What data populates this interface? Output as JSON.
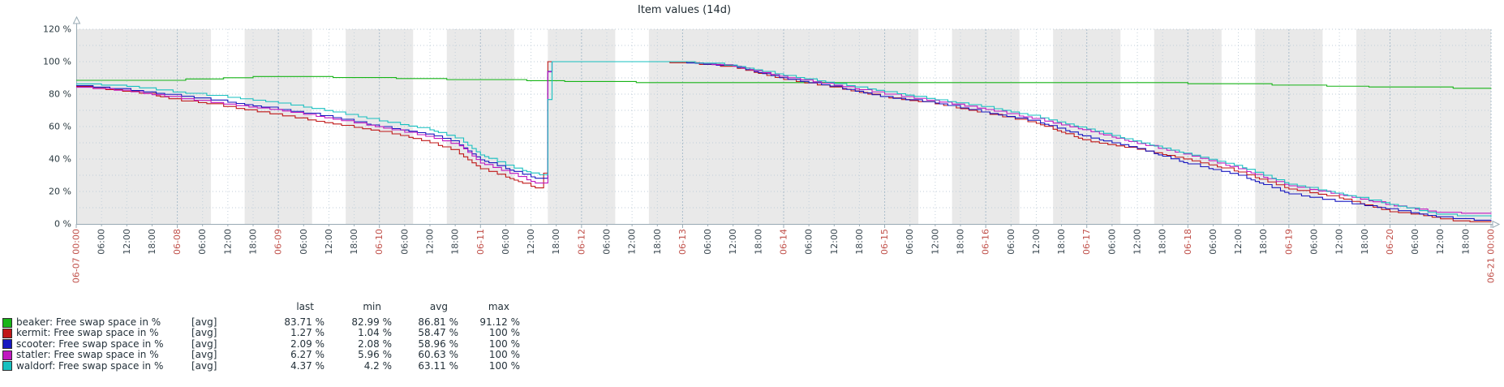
{
  "chart_data": {
    "type": "line",
    "title": "Item values (14d)",
    "y_axis": {
      "unit": "%",
      "min": 0,
      "max": 120,
      "label_step": 20,
      "grid_step": 10,
      "tick_labels": [
        "0 %",
        "20 %",
        "40 %",
        "60 %",
        "80 %",
        "100 %",
        "120 %"
      ]
    },
    "x_axis": {
      "total_days": 14,
      "tick_hours": 6,
      "hour_labels": [
        "06:00",
        "12:00",
        "18:00"
      ],
      "day_labels": [
        "06-07 00:00",
        "06-08",
        "06-09",
        "06-10",
        "06-11",
        "06-12",
        "06-13",
        "06-14",
        "06-15",
        "06-16",
        "06-17",
        "06-18",
        "06-19",
        "06-20",
        "06-21 00:00"
      ]
    },
    "background": {
      "band_color": "#e9e9e9",
      "working_day_offsets": [
        1,
        2,
        3,
        4,
        5,
        8,
        9,
        10,
        11,
        12
      ],
      "working_window_hours": [
        8,
        16
      ]
    },
    "grid": {
      "h_color": "#bfcdd9",
      "v_color": "#c3d0da",
      "v_day_color": "#aabdcb",
      "axis_color": "#98aab4",
      "hour_label_color": "#3a4750",
      "day_label_color": "#c0504a",
      "y_label_color": "#2a3940"
    },
    "series": [
      {
        "name": "beaker: Free swap space in %",
        "color": "#17b417",
        "points": [
          [
            0,
            88.5
          ],
          [
            0.3,
            88.2
          ],
          [
            0.7,
            88.8
          ],
          [
            1,
            89.2
          ],
          [
            1.5,
            90.2
          ],
          [
            1.8,
            91.0
          ],
          [
            2.2,
            90.5
          ],
          [
            3,
            89.8
          ],
          [
            3.6,
            89.0
          ],
          [
            4,
            88.6
          ],
          [
            4.6,
            88.2
          ],
          [
            5,
            87.5
          ],
          [
            5.5,
            87.1
          ],
          [
            6,
            86.9
          ],
          [
            6.5,
            87.2
          ],
          [
            7,
            87.0
          ],
          [
            7.5,
            87.1
          ],
          [
            8,
            87.2
          ],
          [
            8.5,
            87.0
          ],
          [
            9,
            87.1
          ],
          [
            9.5,
            87.0
          ],
          [
            10,
            87.2
          ],
          [
            10.5,
            86.9
          ],
          [
            11,
            86.4
          ],
          [
            11.5,
            85.9
          ],
          [
            12,
            85.4
          ],
          [
            12.5,
            84.7
          ],
          [
            13,
            84.2
          ],
          [
            13.5,
            83.9
          ],
          [
            13.8,
            83.2
          ],
          [
            14,
            83.71
          ]
        ]
      },
      {
        "name": "kermit: Free swap space in %",
        "color": "#c01717",
        "points": [
          [
            0,
            84.8
          ],
          [
            0.25,
            83.0
          ],
          [
            0.5,
            81.5
          ],
          [
            0.75,
            79.5
          ],
          [
            1,
            76.0
          ],
          [
            1.25,
            74.5
          ],
          [
            1.5,
            72.0
          ],
          [
            1.75,
            69.5
          ],
          [
            2,
            67.0
          ],
          [
            2.5,
            62.0
          ],
          [
            3,
            57.0
          ],
          [
            3.25,
            54.0
          ],
          [
            3.5,
            50.0
          ],
          [
            3.75,
            45.0
          ],
          [
            4,
            34.0
          ],
          [
            4.2,
            30.0
          ],
          [
            4.4,
            25.5
          ],
          [
            4.55,
            22.0
          ],
          [
            4.62,
            21.5
          ],
          [
            4.66,
            100
          ],
          [
            5.2,
            100
          ],
          [
            5.5,
            99.8
          ],
          [
            6,
            99.2
          ],
          [
            6.5,
            96.5
          ],
          [
            7,
            89.0
          ],
          [
            7.5,
            84.0
          ],
          [
            8,
            78.0
          ],
          [
            8.5,
            74.0
          ],
          [
            9,
            68.0
          ],
          [
            9.5,
            62.0
          ],
          [
            10,
            51.0
          ],
          [
            10.5,
            46.0
          ],
          [
            11,
            39.5
          ],
          [
            11.5,
            32.0
          ],
          [
            12,
            21.5
          ],
          [
            12.5,
            16.0
          ],
          [
            13,
            7.5
          ],
          [
            13.3,
            5.5
          ],
          [
            13.6,
            2.0
          ],
          [
            13.9,
            1.1
          ],
          [
            14,
            1.27
          ]
        ]
      },
      {
        "name": "scooter: Free swap space in %",
        "color": "#1717c0",
        "points": [
          [
            0,
            85.2
          ],
          [
            0.5,
            82.5
          ],
          [
            1,
            79.0
          ],
          [
            1.5,
            75.0
          ],
          [
            2,
            70.5
          ],
          [
            2.5,
            66.0
          ],
          [
            3,
            60.0
          ],
          [
            3.5,
            55.0
          ],
          [
            3.75,
            50.5
          ],
          [
            4,
            39.5
          ],
          [
            4.3,
            33.0
          ],
          [
            4.55,
            28.0
          ],
          [
            4.63,
            27.5
          ],
          [
            4.67,
            100
          ],
          [
            5.3,
            100
          ],
          [
            6,
            99.4
          ],
          [
            6.5,
            97.0
          ],
          [
            7,
            89.5
          ],
          [
            7.5,
            84.5
          ],
          [
            8,
            78.0
          ],
          [
            8.5,
            74.5
          ],
          [
            9,
            68.5
          ],
          [
            9.5,
            63.0
          ],
          [
            10,
            53.5
          ],
          [
            10.5,
            46.5
          ],
          [
            11,
            37.0
          ],
          [
            11.5,
            30.0
          ],
          [
            12,
            18.5
          ],
          [
            12.5,
            13.5
          ],
          [
            13,
            9.0
          ],
          [
            13.5,
            4.0
          ],
          [
            13.8,
            2.3
          ],
          [
            14,
            2.09
          ]
        ]
      },
      {
        "name": "statler: Free swap space in %",
        "color": "#c017c0",
        "points": [
          [
            0,
            84.2
          ],
          [
            0.5,
            81.8
          ],
          [
            1,
            77.5
          ],
          [
            1.5,
            73.5
          ],
          [
            2,
            70.0
          ],
          [
            2.5,
            65.0
          ],
          [
            3,
            59.5
          ],
          [
            3.5,
            53.5
          ],
          [
            3.8,
            48.0
          ],
          [
            4,
            37.5
          ],
          [
            4.3,
            31.0
          ],
          [
            4.55,
            25.0
          ],
          [
            4.63,
            24.5
          ],
          [
            4.67,
            100
          ],
          [
            5.4,
            100
          ],
          [
            6,
            99.5
          ],
          [
            6.5,
            97.2
          ],
          [
            7,
            90.5
          ],
          [
            7.5,
            85.5
          ],
          [
            8,
            80.0
          ],
          [
            8.5,
            75.5
          ],
          [
            9,
            70.5
          ],
          [
            9.5,
            64.5
          ],
          [
            10,
            57.5
          ],
          [
            10.5,
            49.5
          ],
          [
            11,
            42.5
          ],
          [
            11.5,
            34.0
          ],
          [
            12,
            23.5
          ],
          [
            12.5,
            18.0
          ],
          [
            13,
            11.5
          ],
          [
            13.5,
            6.8
          ],
          [
            14,
            6.27
          ]
        ]
      },
      {
        "name": "waldorf: Free swap space in %",
        "color": "#17c0c0",
        "points": [
          [
            0,
            86.3
          ],
          [
            0.5,
            84.8
          ],
          [
            1,
            81.0
          ],
          [
            1.5,
            78.0
          ],
          [
            2,
            74.5
          ],
          [
            2.5,
            69.5
          ],
          [
            3,
            63.5
          ],
          [
            3.5,
            58.0
          ],
          [
            3.8,
            52.0
          ],
          [
            4,
            42.5
          ],
          [
            4.3,
            35.0
          ],
          [
            4.55,
            30.5
          ],
          [
            4.64,
            30.0
          ],
          [
            4.68,
            100
          ],
          [
            5.5,
            100
          ],
          [
            6,
            99.6
          ],
          [
            6.5,
            97.5
          ],
          [
            7,
            91.5
          ],
          [
            7.5,
            86.5
          ],
          [
            8,
            81.5
          ],
          [
            8.5,
            76.5
          ],
          [
            9,
            72.0
          ],
          [
            9.5,
            66.0
          ],
          [
            10,
            58.5
          ],
          [
            10.5,
            50.5
          ],
          [
            11,
            43.0
          ],
          [
            11.5,
            35.5
          ],
          [
            12,
            24.5
          ],
          [
            12.5,
            18.5
          ],
          [
            13,
            12.0
          ],
          [
            13.5,
            5.5
          ],
          [
            13.8,
            4.6
          ],
          [
            14,
            4.37
          ]
        ]
      }
    ],
    "legend": {
      "headers": [
        "last",
        "min",
        "avg",
        "max"
      ],
      "rows": [
        {
          "label": "beaker: Free swap space in %",
          "fn": "[avg]",
          "last": "83.71 %",
          "min": "82.99 %",
          "avg": "86.81 %",
          "max": "91.12 %",
          "color": "#17b417"
        },
        {
          "label": "kermit: Free swap space in %",
          "fn": "[avg]",
          "last": "1.27 %",
          "min": "1.04 %",
          "avg": "58.47 %",
          "max": "100 %",
          "color": "#c01717"
        },
        {
          "label": "scooter: Free swap space in %",
          "fn": "[avg]",
          "last": "2.09 %",
          "min": "2.08 %",
          "avg": "58.96 %",
          "max": "100 %",
          "color": "#1717c0"
        },
        {
          "label": "statler: Free swap space in %",
          "fn": "[avg]",
          "last": "6.27 %",
          "min": "5.96 %",
          "avg": "60.63 %",
          "max": "100 %",
          "color": "#c017c0"
        },
        {
          "label": "waldorf: Free swap space in %",
          "fn": "[avg]",
          "last": "4.37 %",
          "min": "4.2 %",
          "avg": "63.11 %",
          "max": "100 %",
          "color": "#17c0c0"
        }
      ]
    }
  }
}
